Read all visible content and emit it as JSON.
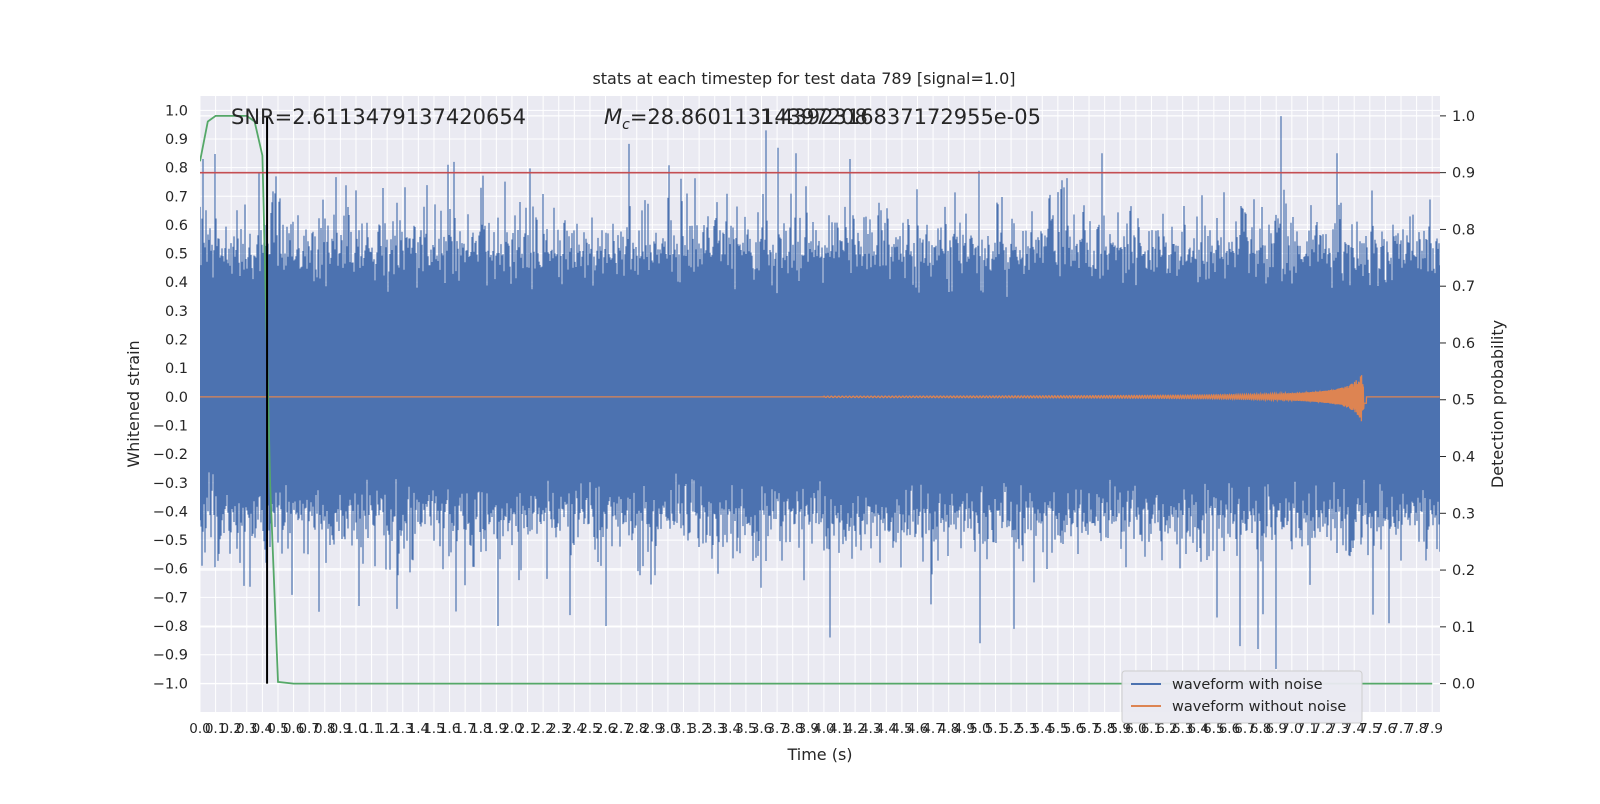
{
  "chart_data": {
    "type": "line",
    "title": "stats at each timestep for test data 789 [signal=1.0]",
    "xlabel": "Time (s)",
    "ylabel": "Whitened strain",
    "y2label": "Detection probability",
    "xlim": [
      0.0,
      7.95
    ],
    "ylim": [
      -1.1,
      1.05
    ],
    "y2lim": [
      -0.05,
      1.035
    ],
    "grid": true,
    "x_ticks": [
      "0.0",
      "0.1",
      "0.2",
      "0.3",
      "0.4",
      "0.5",
      "0.6",
      "0.7",
      "0.8",
      "0.9",
      "1.0",
      "1.1",
      "1.2",
      "1.3",
      "1.4",
      "1.5",
      "1.6",
      "1.7",
      "1.8",
      "1.9",
      "2.0",
      "2.1",
      "2.2",
      "2.3",
      "2.4",
      "2.5",
      "2.6",
      "2.7",
      "2.8",
      "2.9",
      "3.0",
      "3.1",
      "3.2",
      "3.3",
      "3.4",
      "3.5",
      "3.6",
      "3.7",
      "3.8",
      "3.9",
      "4.0",
      "4.1",
      "4.2",
      "4.3",
      "4.4",
      "4.5",
      "4.6",
      "4.7",
      "4.8",
      "4.9",
      "5.0",
      "5.1",
      "5.2",
      "5.3",
      "5.4",
      "5.5",
      "5.6",
      "5.7",
      "5.8",
      "5.9",
      "6.0",
      "6.1",
      "6.2",
      "6.3",
      "6.4",
      "6.5",
      "6.6",
      "6.7",
      "6.8",
      "6.9",
      "7.0",
      "7.1",
      "7.2",
      "7.3",
      "7.4",
      "7.5",
      "7.6",
      "7.7",
      "7.8",
      "7.9"
    ],
    "y_ticks": [
      "1.0",
      "0.9",
      "0.8",
      "0.7",
      "0.6",
      "0.5",
      "0.4",
      "0.3",
      "0.2",
      "0.1",
      "0.0",
      "−0.1",
      "−0.2",
      "−0.3",
      "−0.4",
      "−0.5",
      "−0.6",
      "−0.7",
      "−0.8",
      "−0.9",
      "−1.0"
    ],
    "y2_ticks": [
      "1.0",
      "0.9",
      "0.8",
      "0.7",
      "0.6",
      "0.5",
      "0.4",
      "0.3",
      "0.2",
      "0.1",
      "0.0"
    ],
    "annotations": {
      "snr": "SNR=2.6113479137420654",
      "mc_symbol": "M",
      "mc_sub": "c",
      "mc_value": "=28.86011314397208",
      "overlap": "1.4392316837172955e-05"
    },
    "threshold_line": {
      "y2": 0.9,
      "color": "#c44e52"
    },
    "vertical_marker": {
      "x": 0.43,
      "color": "#000000"
    },
    "legend": {
      "placement": "lower-right",
      "entries": [
        "waveform with noise",
        "waveform without noise"
      ]
    },
    "series": [
      {
        "name": "waveform with noise",
        "color": "#4c72b0",
        "kind": "dense-noise",
        "band": [
          -0.4,
          0.5
        ],
        "extremes": [
          {
            "x": 0.02,
            "y": 0.83
          },
          {
            "x": 0.05,
            "y": -0.4
          },
          {
            "x": 0.28,
            "y": -0.66
          },
          {
            "x": 0.38,
            "y": 0.78
          },
          {
            "x": 0.76,
            "y": -0.75
          },
          {
            "x": 1.02,
            "y": -0.73
          },
          {
            "x": 1.26,
            "y": -0.74
          },
          {
            "x": 1.59,
            "y": 0.81
          },
          {
            "x": 1.63,
            "y": 0.82
          },
          {
            "x": 1.91,
            "y": -0.8
          },
          {
            "x": 2.6,
            "y": -0.8
          },
          {
            "x": 3.63,
            "y": 0.93
          },
          {
            "x": 3.82,
            "y": 0.85
          },
          {
            "x": 4.04,
            "y": -0.84
          },
          {
            "x": 4.17,
            "y": 0.83
          },
          {
            "x": 5.0,
            "y": -0.86
          },
          {
            "x": 5.22,
            "y": -0.81
          },
          {
            "x": 5.78,
            "y": 0.85
          },
          {
            "x": 6.52,
            "y": -0.77
          },
          {
            "x": 6.67,
            "y": -0.87
          },
          {
            "x": 6.78,
            "y": -0.88
          },
          {
            "x": 6.9,
            "y": -0.95
          },
          {
            "x": 6.93,
            "y": 0.98
          },
          {
            "x": 7.29,
            "y": 0.85
          },
          {
            "x": 7.52,
            "y": -0.76
          },
          {
            "x": 7.62,
            "y": -0.79
          }
        ]
      },
      {
        "name": "waveform without noise",
        "color": "#dd8452",
        "kind": "chirp",
        "start_x": 4.0,
        "peak_x": 7.47,
        "peak_amplitude": 0.13
      },
      {
        "name": "",
        "axis": "y2",
        "color": "#55a868",
        "x": [
          0.0,
          0.05,
          0.1,
          0.2,
          0.3,
          0.35,
          0.4,
          0.45,
          0.5,
          0.6,
          7.9
        ],
        "y": [
          0.92,
          0.99,
          1.0,
          1.0,
          1.0,
          0.99,
          0.93,
          0.35,
          0.003,
          0.0,
          0.0
        ]
      }
    ]
  }
}
